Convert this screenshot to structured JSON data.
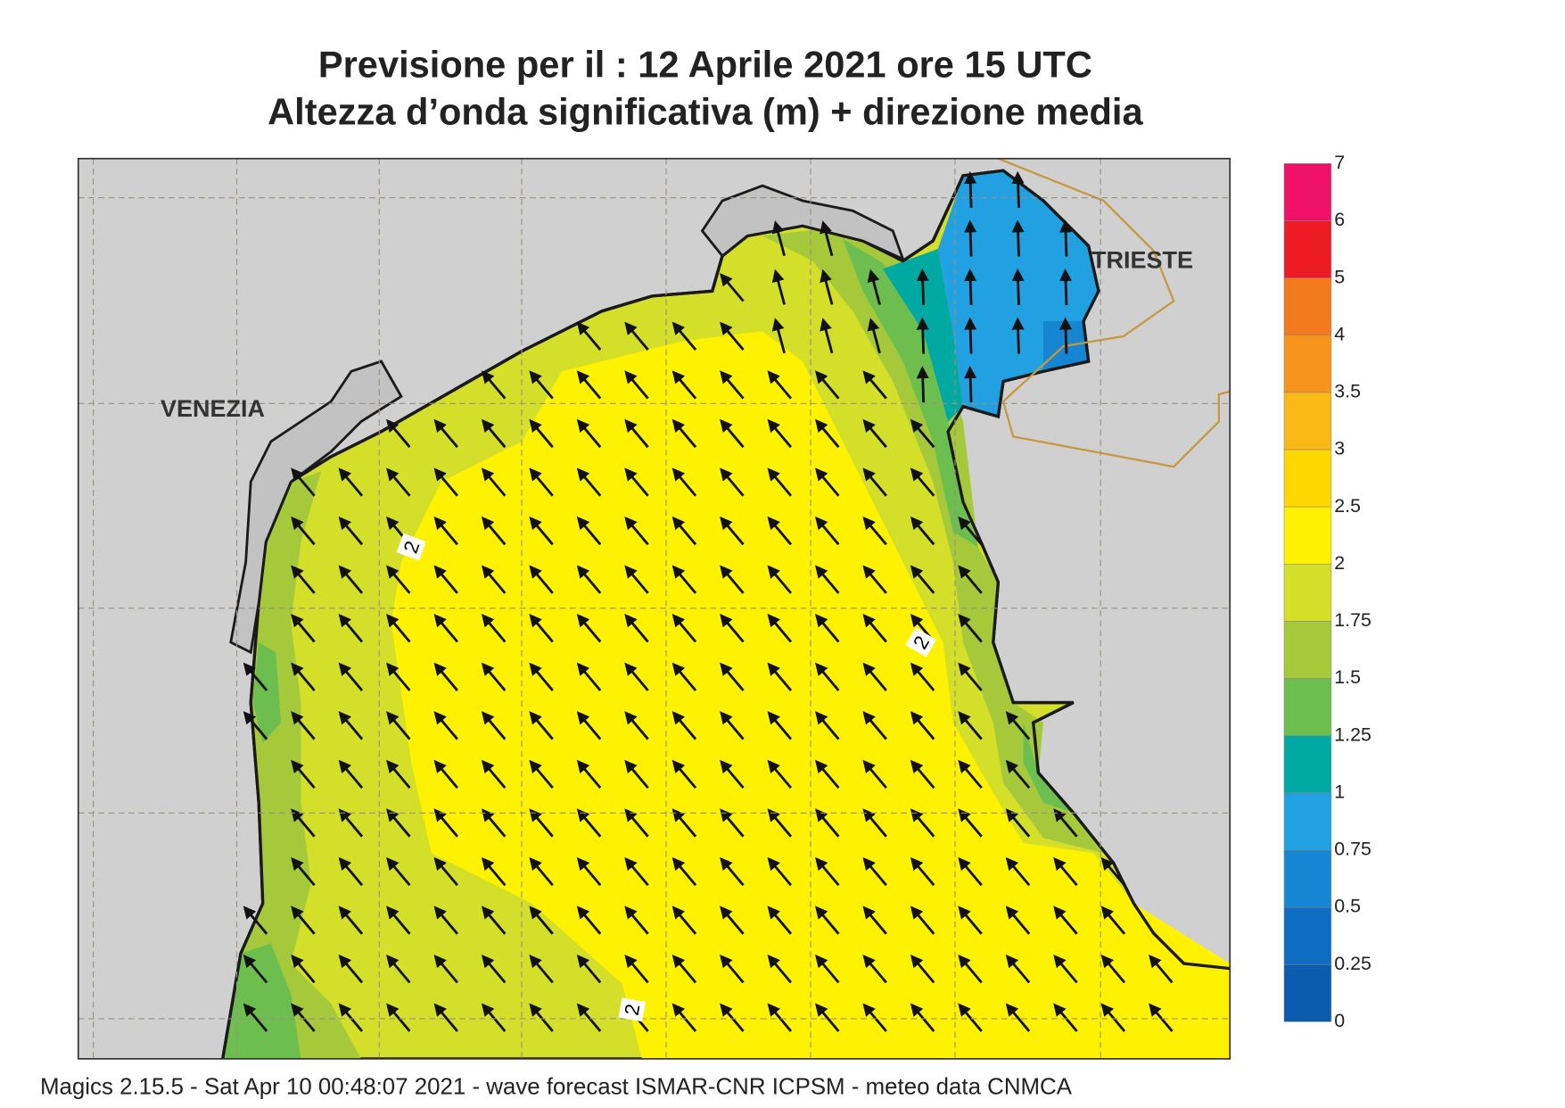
{
  "header": {
    "title_line1": "Previsione per il  :  12   Aprile  2021   ore 15 UTC",
    "title_line2": "Altezza d’onda significativa (m) + direzione media"
  },
  "map": {
    "place_labels": [
      "VENEZIA",
      "TRIESTE"
    ],
    "contour_labels": [
      2,
      2,
      2
    ]
  },
  "colorbar": {
    "levels": [
      0,
      0.25,
      0.5,
      0.75,
      1,
      1.25,
      1.5,
      1.75,
      2,
      2.5,
      3,
      3.5,
      4,
      5,
      6,
      7
    ],
    "colors": [
      "#0b5cae",
      "#0e6dc2",
      "#1686d3",
      "#21a0e2",
      "#00aaa2",
      "#6cbf4f",
      "#a6c93b",
      "#d4df2a",
      "#fff200",
      "#ffd700",
      "#fbb917",
      "#f7941d",
      "#f47a20",
      "#ed1c24",
      "#ee1165"
    ]
  },
  "footer": "Magics 2.15.5 - Sat Apr 10 00:48:07 2021 - wave forecast  ISMAR-CNR  ICPSM - meteo data   CNMCA"
}
